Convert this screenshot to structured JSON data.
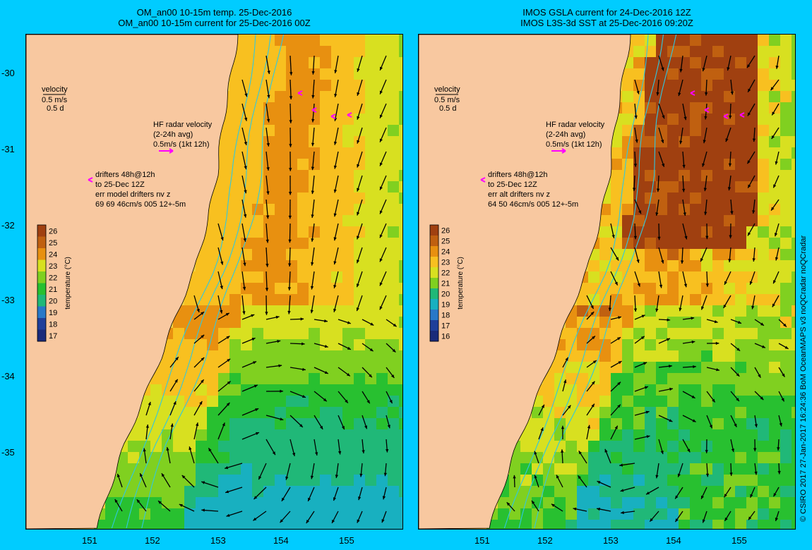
{
  "colors": {
    "background": "#00ccff",
    "land": "#f8c8a0",
    "arrow": "#000000",
    "contour": "#30c8e0",
    "radar_arrow": "#ff00ff"
  },
  "credit": "© CSIRO 2017   27-Jan-2017 16:24:36 BoM OceanMAPS v3 noQCradar noQCradar",
  "axes": {
    "y_ticks": [
      "-30",
      "-31",
      "-32",
      "-33",
      "-34",
      "-35"
    ],
    "x_ticks": [
      "151",
      "152",
      "153",
      "154",
      "155"
    ]
  },
  "colorbar": {
    "label": "temperature (°C)",
    "colors": [
      "#1a2a7a",
      "#1f3f9a",
      "#2878c8",
      "#18b0c0",
      "#20b878",
      "#28c030",
      "#80d020",
      "#d8e020",
      "#f8c020",
      "#e89010",
      "#c06010",
      "#a04010"
    ]
  },
  "panels": [
    {
      "id": "left",
      "title_line1": "OM_an00 10-15m temp. 25-Dec-2016",
      "title_line2": "OM_an00 10-15m current for 25-Dec-2016 00Z",
      "velocity_label": "velocity",
      "velocity_scale": "0.5 m/s",
      "velocity_time": "0.5 d",
      "radar_label1": "HF radar velocity",
      "radar_label2": "(2-24h avg)",
      "radar_label3": "0.5m/s (1kt 12h)",
      "drift_line1": "drifters 48h@12h",
      "drift_line2": "to 25-Dec 12Z",
      "drift_line3": "err model drifters nv z",
      "drift_line4": "69 69 46cm/s 005 12+-5m",
      "cb_ticks": [
        "26",
        "25",
        "24",
        "23",
        "22",
        "21",
        "20",
        "19",
        "18",
        "17"
      ]
    },
    {
      "id": "right",
      "title_line1": "IMOS GSLA current for 24-Dec-2016 12Z",
      "title_line2": "IMOS L3S-3d SST at 25-Dec-2016 09:20Z",
      "velocity_label": "velocity",
      "velocity_scale": "0.5 m/s",
      "velocity_time": "0.5 d",
      "radar_label1": "HF radar velocity",
      "radar_label2": "(2-24h avg)",
      "radar_label3": "0.5m/s (1kt 12h)",
      "drift_line1": "drifters 48h@12h",
      "drift_line2": "to 25-Dec 12Z",
      "drift_line3": "err alt drifters nv z",
      "drift_line4": "64 50 46cm/s 005 12+-5m",
      "cb_ticks": [
        "26",
        "25",
        "24",
        "23",
        "22",
        "21",
        "20",
        "19",
        "18",
        "17",
        "16"
      ]
    }
  ]
}
